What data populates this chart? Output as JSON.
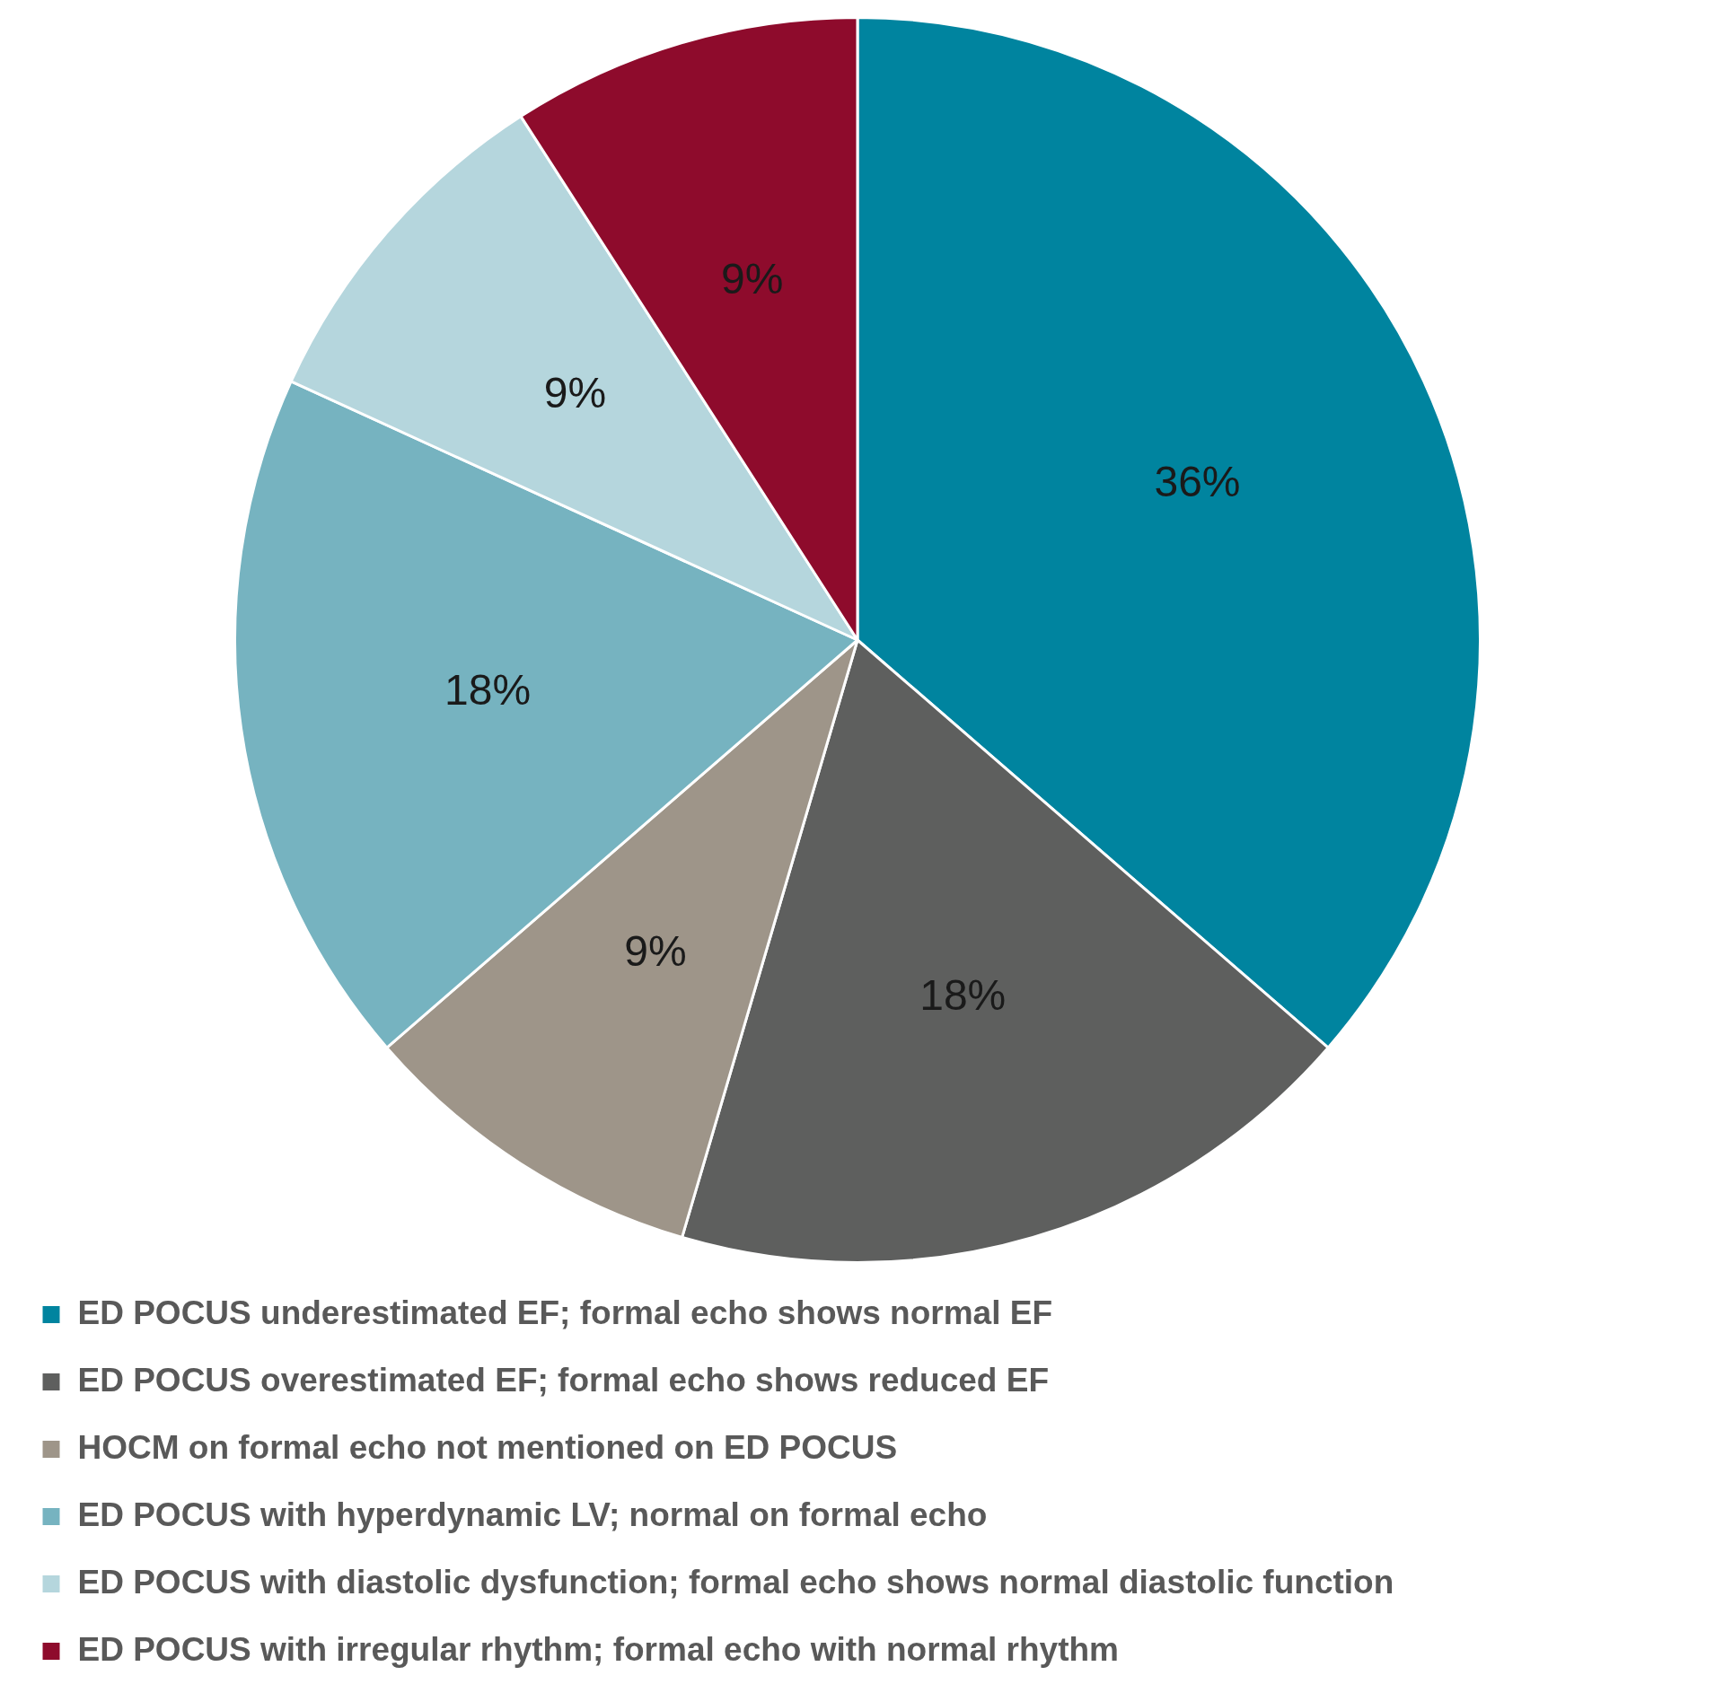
{
  "chart_data": {
    "type": "pie",
    "categories": [
      "ED POCUS underestimated EF; formal echo shows normal EF",
      "ED POCUS overestimated EF; formal echo shows reduced EF",
      "HOCM on formal echo not mentioned on ED POCUS",
      "ED POCUS with hyperdynamic LV; normal on formal echo",
      "ED POCUS with diastolic dysfunction; formal echo shows normal diastolic function",
      "ED POCUS with irregular rhythm; formal echo with normal rhythm"
    ],
    "values": [
      36,
      18,
      9,
      18,
      9,
      9
    ],
    "value_labels": [
      "36%",
      "18%",
      "9%",
      "18%",
      "9%",
      "9%"
    ],
    "colors": [
      "#00849f",
      "#5e5f5e",
      "#9e9589",
      "#76b3c0",
      "#b5d6dd",
      "#8e0b2c"
    ],
    "legend": "bottom"
  }
}
